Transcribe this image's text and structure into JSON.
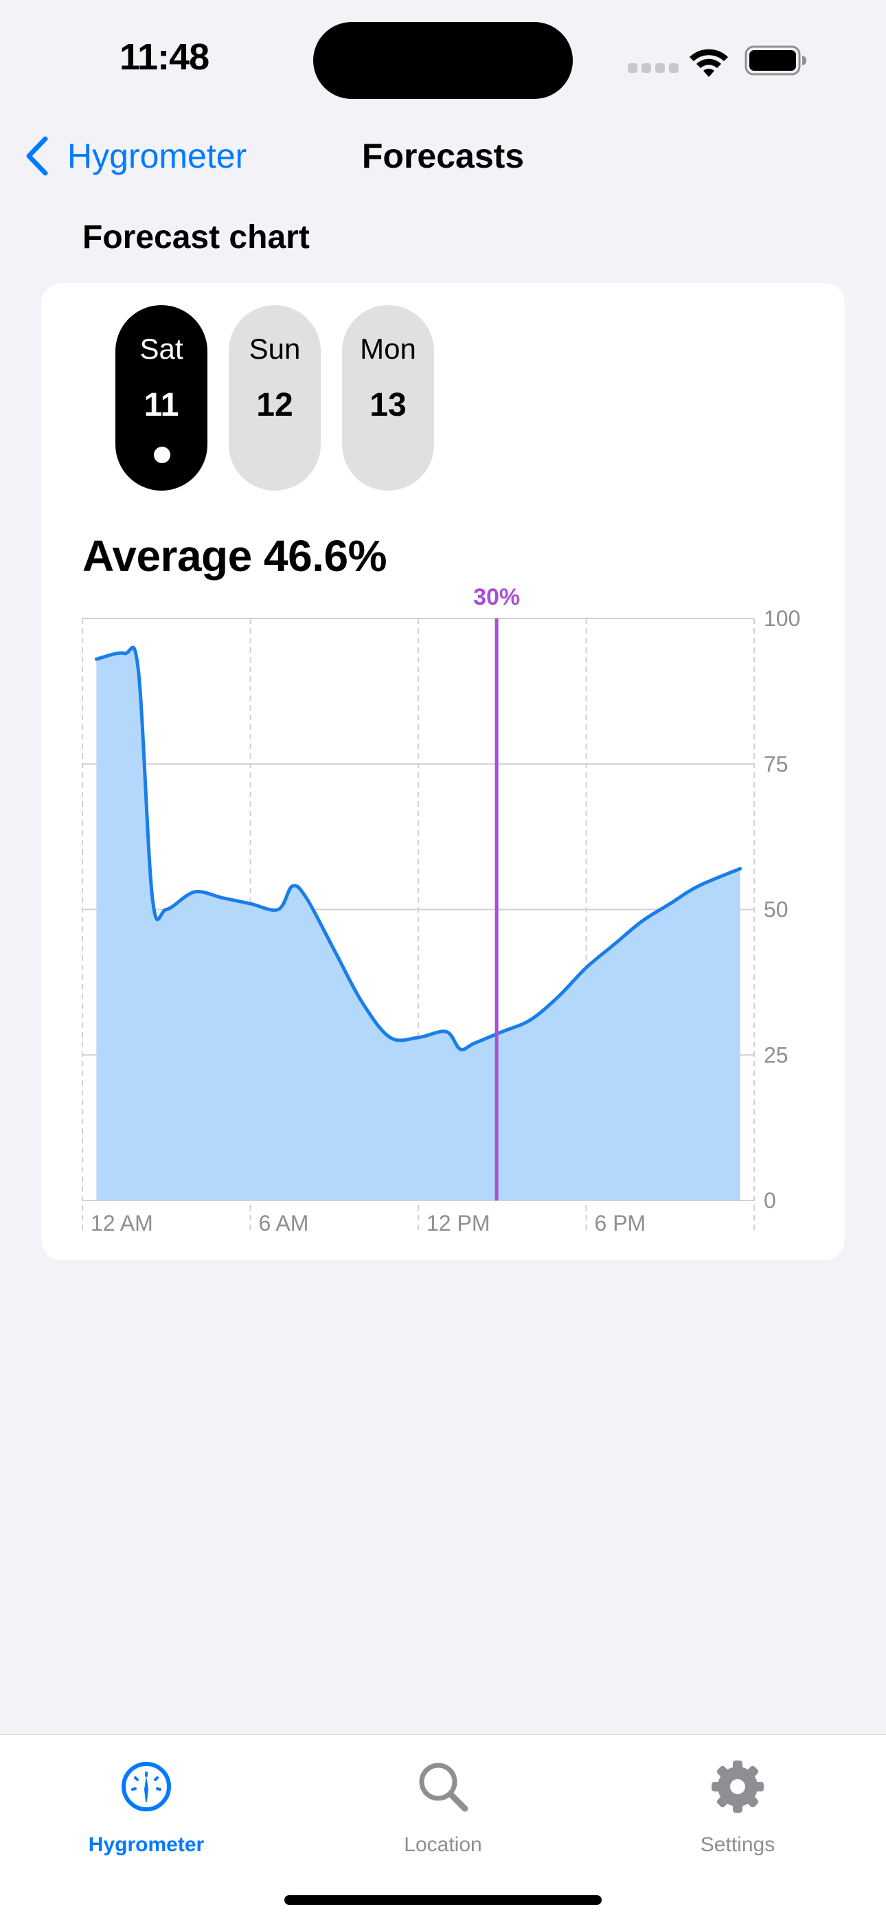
{
  "status_bar": {
    "time": "11:48"
  },
  "nav": {
    "back_label": "Hygrometer",
    "title": "Forecasts"
  },
  "section_title": "Forecast chart",
  "days": [
    {
      "name": "Sat",
      "number": "11",
      "selected": true
    },
    {
      "name": "Sun",
      "number": "12",
      "selected": false
    },
    {
      "name": "Mon",
      "number": "13",
      "selected": false
    }
  ],
  "average_label": "Average 46.6%",
  "chart_data": {
    "type": "area",
    "title": "",
    "xlabel": "",
    "ylabel": "",
    "x_hours": [
      0.5,
      1.5,
      2,
      2.5,
      3,
      4,
      5,
      6,
      7,
      7.5,
      8,
      9,
      10,
      11,
      12,
      13,
      13.5,
      14,
      15,
      16,
      17,
      18,
      19,
      20,
      21,
      22,
      23.5
    ],
    "y_values": [
      93,
      94,
      91,
      52,
      50,
      53,
      52,
      51,
      50,
      54,
      52,
      43,
      34,
      28,
      28,
      29,
      26,
      27,
      29,
      31,
      35,
      40,
      44,
      48,
      51,
      54,
      57
    ],
    "x_range": [
      0,
      24
    ],
    "ylim": [
      0,
      100
    ],
    "y_ticks": [
      "0",
      "25",
      "50",
      "75",
      "100"
    ],
    "x_ticks": [
      {
        "hour": 0,
        "label": "12 AM"
      },
      {
        "hour": 6,
        "label": "6 AM"
      },
      {
        "hour": 12,
        "label": "12 PM"
      },
      {
        "hour": 18,
        "label": "6 PM"
      }
    ],
    "selection": {
      "hour": 14.8,
      "label": "30%"
    },
    "grid": true,
    "colors": {
      "line": "#1a7ee8",
      "fill": "#b4d8fc",
      "selection": "#a850d4",
      "grid": "#d0d0d4",
      "tick_text": "#8e8e93"
    }
  },
  "tabs": [
    {
      "label": "Hygrometer",
      "icon": "gauge-icon",
      "active": true
    },
    {
      "label": "Location",
      "icon": "magnifying-glass-icon",
      "active": false
    },
    {
      "label": "Settings",
      "icon": "gear-icon",
      "active": false
    }
  ],
  "colors": {
    "accent": "#007aff",
    "background": "#f2f2f7"
  }
}
